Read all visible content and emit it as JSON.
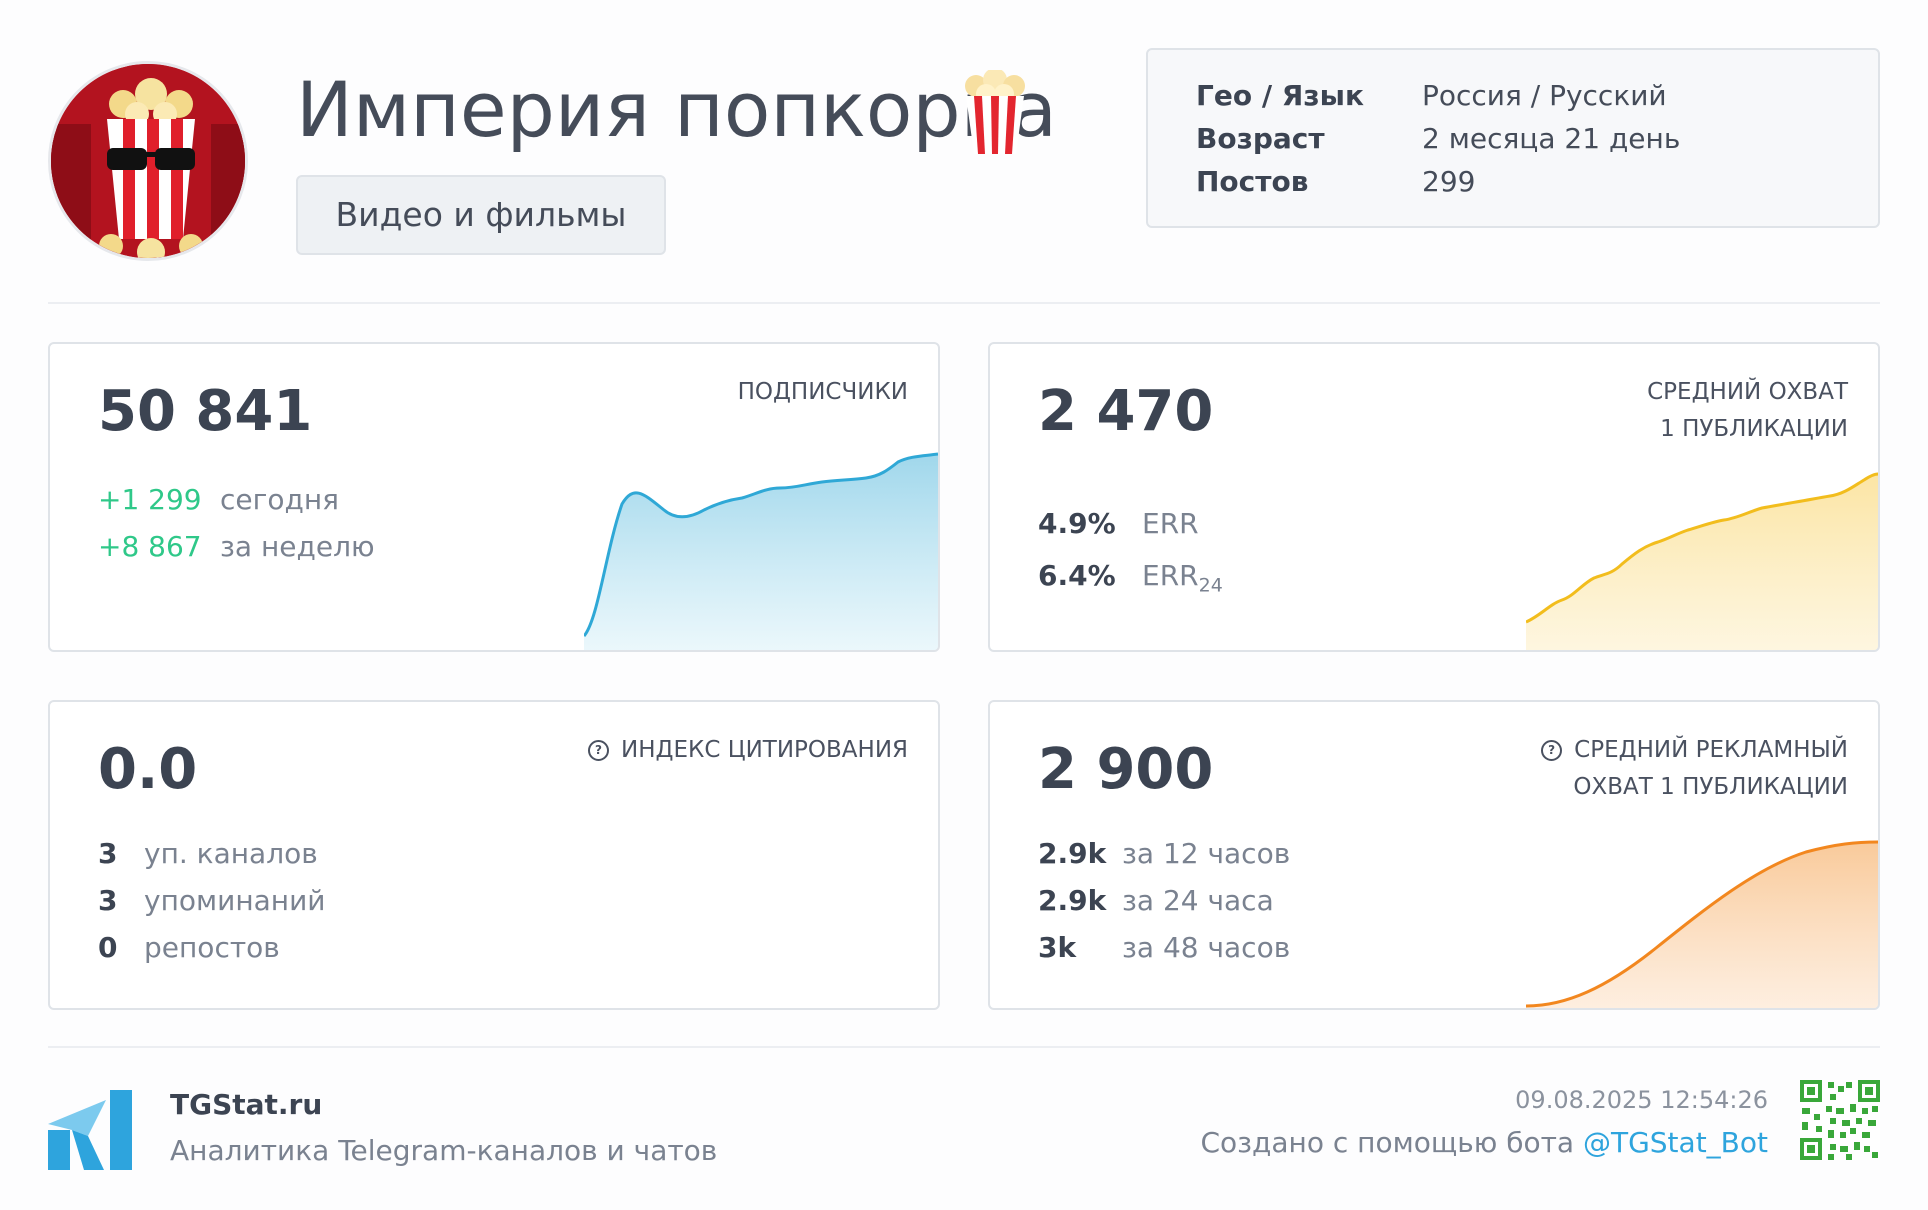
{
  "header": {
    "title": "Империя попкорна",
    "category": "Видео и фильмы",
    "info": [
      {
        "key": "Гео / Язык",
        "value": "Россия / Русский"
      },
      {
        "key": "Возраст",
        "value": "2 месяца 21 день"
      },
      {
        "key": "Постов",
        "value": "299"
      }
    ]
  },
  "cards": {
    "subscribers": {
      "value": "50 841",
      "caption": "ПОДПИСЧИКИ",
      "rows": [
        {
          "num": "+1 299",
          "label": "сегодня"
        },
        {
          "num": "+8 867",
          "label": "за неделю"
        }
      ],
      "color": "#2fa8d6"
    },
    "reach": {
      "value": "2 470",
      "caption_1": "СРЕДНИЙ ОХВАТ",
      "caption_2": "1 ПУБЛИКАЦИИ",
      "rows": [
        {
          "num": "4.9%",
          "label": "ERR",
          "sub": ""
        },
        {
          "num": "6.4%",
          "label": "ERR",
          "sub": "24"
        }
      ],
      "color": "#f2bd1d"
    },
    "citation": {
      "value": "0.0",
      "caption": "ИНДЕКС ЦИТИРОВАНИЯ",
      "rows": [
        {
          "num": "3",
          "label": "уп. каналов"
        },
        {
          "num": "3",
          "label": "упоминаний"
        },
        {
          "num": "0",
          "label": "репостов"
        }
      ]
    },
    "ad_reach": {
      "value": "2 900",
      "caption_1": "СРЕДНИЙ РЕКЛАМНЫЙ",
      "caption_2": "ОХВАТ 1 ПУБЛИКАЦИИ",
      "rows": [
        {
          "num": "2.9k",
          "label": "за 12 часов"
        },
        {
          "num": "2.9k",
          "label": "за 24 часа"
        },
        {
          "num": "3k",
          "label": "за 48 часов"
        }
      ],
      "color": "#f2871f"
    }
  },
  "footer": {
    "brand": "TGStat.ru",
    "tagline": "Аналитика Telegram-каналов и чатов",
    "date": "09.08.2025 12:54:26",
    "created_prefix": "Создано с помощью бота ",
    "bot": "@TGStat_Bot",
    "accent": "#2ea4dd"
  }
}
